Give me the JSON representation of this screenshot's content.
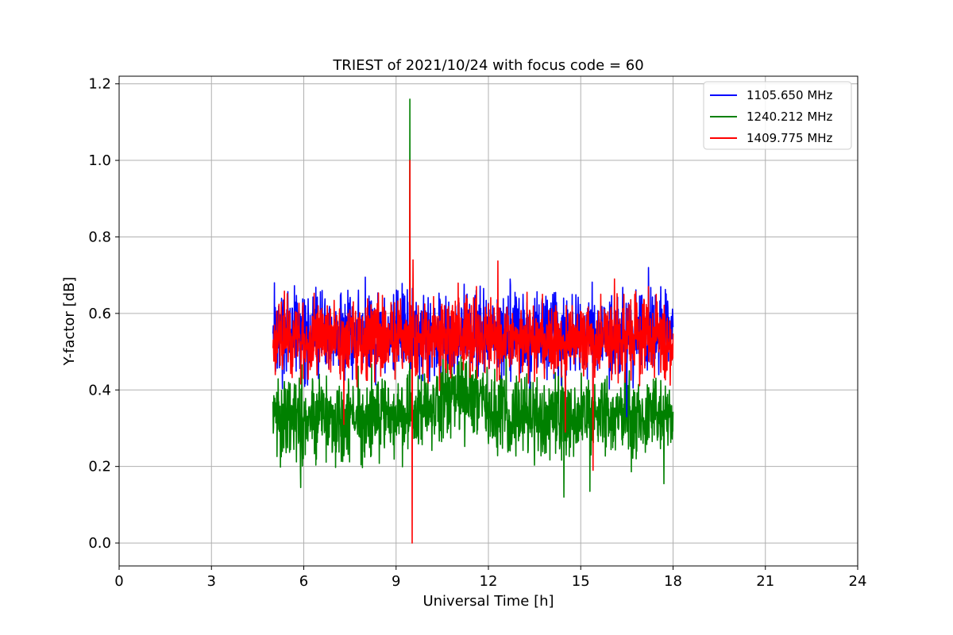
{
  "chart_data": {
    "type": "line",
    "title": "TRIEST of 2021/10/24 with focus code = 60",
    "xlabel": "Universal Time [h]",
    "ylabel": "Y-factor [dB]",
    "xlim": [
      0,
      24
    ],
    "ylim": [
      -0.06,
      1.22
    ],
    "xticks": [
      0,
      3,
      6,
      9,
      12,
      15,
      18,
      21,
      24
    ],
    "yticks": [
      0.0,
      0.2,
      0.4,
      0.6,
      0.8,
      1.0,
      1.2
    ],
    "grid": true,
    "legend_position": "top-right",
    "series": [
      {
        "name": "1105.650 MHz",
        "color": "#0000ff",
        "x_range": [
          5.0,
          18.0
        ],
        "mean": 0.545,
        "spread": 0.09,
        "peaks": [
          {
            "x": 5.05,
            "y": 0.68
          },
          {
            "x": 6.6,
            "y": 0.66
          },
          {
            "x": 11.6,
            "y": 0.66
          },
          {
            "x": 17.2,
            "y": 0.72
          },
          {
            "x": 17.6,
            "y": 0.67
          }
        ],
        "dips": [
          {
            "x": 14.5,
            "y": 0.34
          },
          {
            "x": 15.4,
            "y": 0.36
          },
          {
            "x": 16.5,
            "y": 0.33
          }
        ]
      },
      {
        "name": "1240.212 MHz",
        "color": "#008000",
        "x_range": [
          5.0,
          18.0
        ],
        "mean": 0.33,
        "spread": 0.09,
        "peaks": [
          {
            "x": 9.45,
            "y": 1.16
          },
          {
            "x": 11.0,
            "y": 0.49
          }
        ],
        "dips": [
          {
            "x": 5.9,
            "y": 0.145
          },
          {
            "x": 14.45,
            "y": 0.12
          },
          {
            "x": 15.3,
            "y": 0.135
          },
          {
            "x": 17.7,
            "y": 0.155
          }
        ]
      },
      {
        "name": "1409.775 MHz",
        "color": "#ff0000",
        "x_range": [
          5.0,
          18.0
        ],
        "mean": 0.535,
        "spread": 0.085,
        "peaks": [
          {
            "x": 9.45,
            "y": 1.0
          },
          {
            "x": 9.55,
            "y": 0.74
          },
          {
            "x": 16.1,
            "y": 0.69
          },
          {
            "x": 17.2,
            "y": 0.67
          }
        ],
        "dips": [
          {
            "x": 9.52,
            "y": 0.0
          },
          {
            "x": 15.4,
            "y": 0.19
          },
          {
            "x": 14.5,
            "y": 0.29
          },
          {
            "x": 7.3,
            "y": 0.31
          }
        ]
      }
    ]
  }
}
